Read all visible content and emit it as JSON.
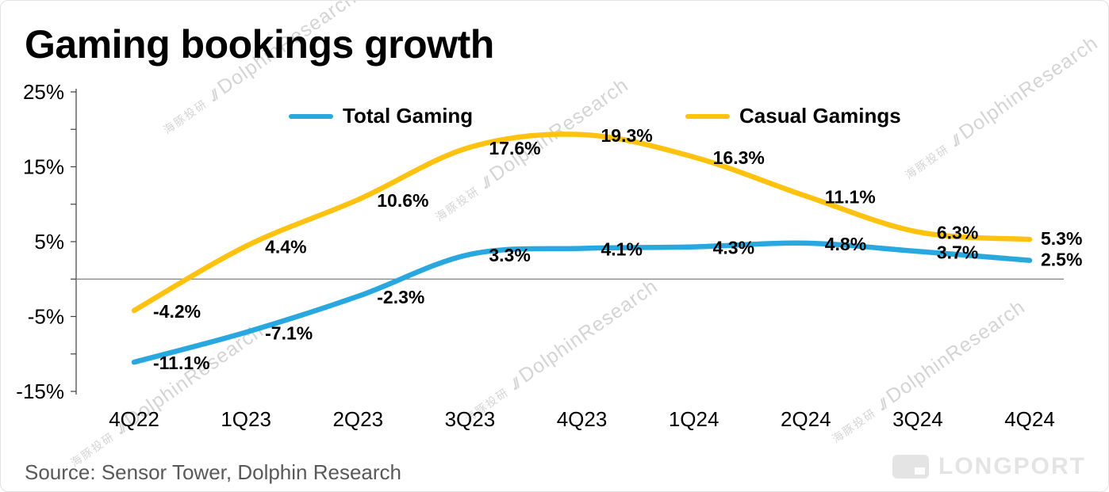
{
  "title": "Gaming bookings growth",
  "source": "Source: Sensor Tower, Dolphin Research",
  "brand": "LONGPORT",
  "watermark": {
    "cn": "海豚投研",
    "slashes": ".//",
    "en": "DolphinResearch"
  },
  "chart_data": {
    "type": "line",
    "categories": [
      "4Q22",
      "1Q23",
      "2Q23",
      "3Q23",
      "4Q23",
      "1Q24",
      "2Q24",
      "3Q24",
      "4Q24"
    ],
    "series": [
      {
        "name": "Total Gaming",
        "color": "#29A8E0",
        "values": [
          -11.1,
          -7.1,
          -2.3,
          3.3,
          4.1,
          4.3,
          4.8,
          3.7,
          2.5
        ],
        "labels": [
          "-11.1%",
          "-7.1%",
          "-2.3%",
          "3.3%",
          "4.1%",
          "4.3%",
          "4.8%",
          "3.7%",
          "2.5%"
        ]
      },
      {
        "name": "Casual Gamings",
        "color": "#FFC20E",
        "values": [
          -4.2,
          4.4,
          10.6,
          17.6,
          19.3,
          16.3,
          11.1,
          6.3,
          5.3
        ],
        "labels": [
          "-4.2%",
          "4.4%",
          "10.6%",
          "17.6%",
          "19.3%",
          "16.3%",
          "11.1%",
          "6.3%",
          "5.3%"
        ]
      }
    ],
    "ylim": [
      -15,
      25
    ],
    "yticks": [
      25,
      15,
      5,
      -5,
      -15
    ],
    "ytick_labels": [
      "25%",
      "15%",
      "5%",
      "-5%",
      "-15%"
    ],
    "minor_ytick_step": 5,
    "zero_line": true,
    "grid": false,
    "legend_position": "top-inside",
    "data_labels": true
  }
}
